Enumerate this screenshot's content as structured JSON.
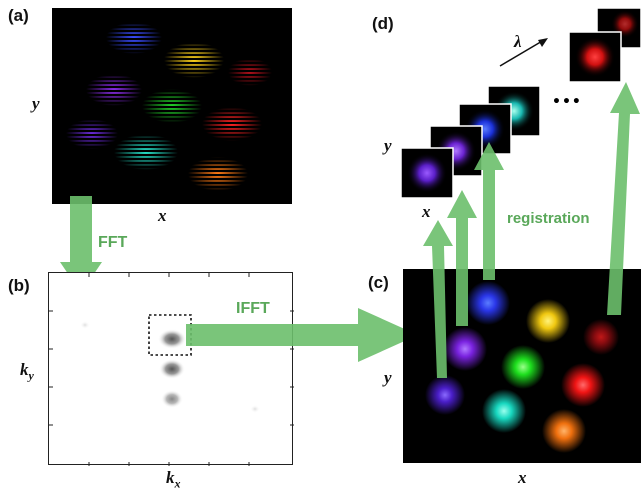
{
  "panels": {
    "a": {
      "label": "(a)",
      "xlabel": "x",
      "ylabel": "y"
    },
    "b": {
      "label": "(b)",
      "xlabel": "k",
      "xlabel_sub": "x",
      "ylabel": "k",
      "ylabel_sub": "y"
    },
    "c": {
      "label": "(c)",
      "xlabel": "x",
      "ylabel": "y"
    },
    "d": {
      "label": "(d)",
      "xlabel": "x",
      "ylabel": "y",
      "wavelength_symbol": "λ",
      "ellipsis": "•••"
    }
  },
  "arrows": {
    "fft": "FFT",
    "ifft": "IFFT",
    "registration": "registration"
  },
  "colors": {
    "arrow_green": "#6cbf6c",
    "text_green": "#5aa85a",
    "spots": [
      "blue",
      "yellow",
      "red",
      "purple",
      "green",
      "violet",
      "cyan",
      "orange"
    ]
  }
}
